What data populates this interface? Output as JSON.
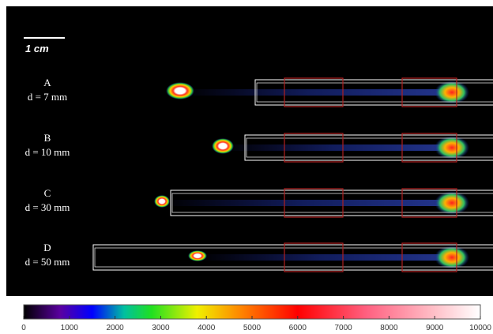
{
  "scale_bar": "1 cm",
  "samples": [
    {
      "label": "A",
      "distance": "d = 7 mm"
    },
    {
      "label": "B",
      "distance": "d = 10 mm"
    },
    {
      "label": "C",
      "distance": "d = 30 mm"
    },
    {
      "label": "D",
      "distance": "d = 50 mm"
    }
  ],
  "colorbar": {
    "ticks": [
      0,
      1000,
      2000,
      3000,
      4000,
      5000,
      6000,
      7000,
      8000,
      9000,
      10000
    ]
  }
}
